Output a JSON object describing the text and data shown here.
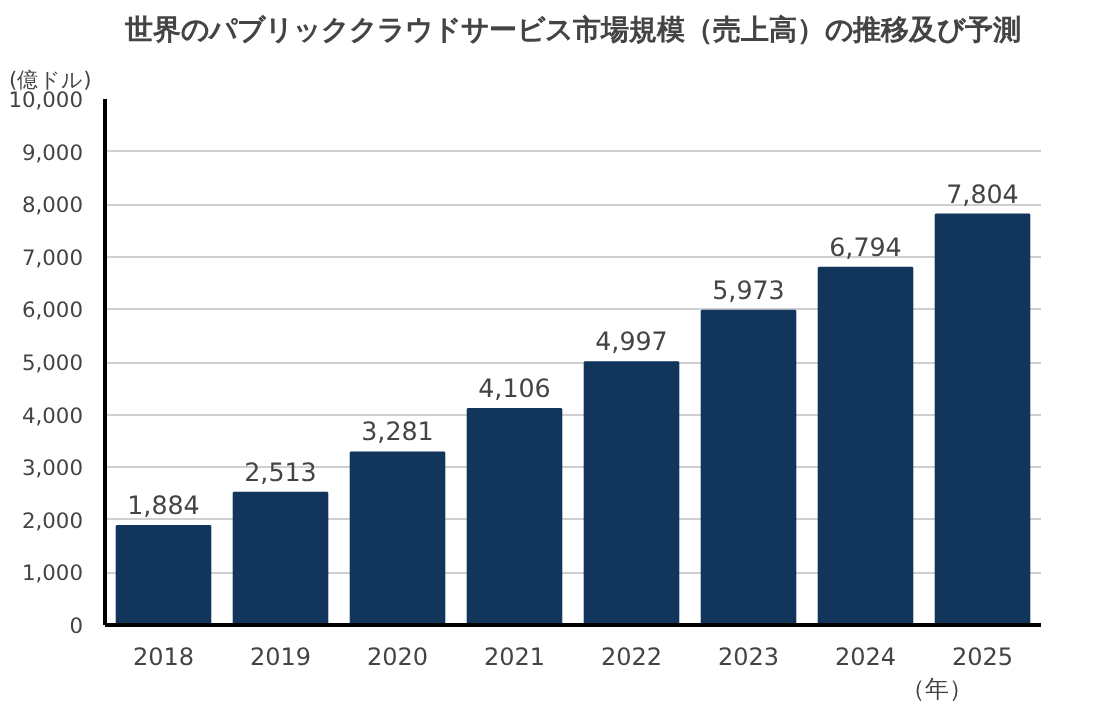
{
  "chart_data": {
    "type": "bar",
    "title": "世界のパブリッククラウドサービス市場規模（売上高）の推移及び予測",
    "ylabel": "(億ドル)",
    "xlabel": "（年）",
    "categories": [
      "2018",
      "2019",
      "2020",
      "2021",
      "2022",
      "2023",
      "2024",
      "2025"
    ],
    "values": [
      1884,
      2513,
      3281,
      4106,
      4997,
      5973,
      6794,
      7804
    ],
    "color": "#12355b",
    "ylim": [
      0,
      10000
    ],
    "yticks": [
      {
        "value": 0,
        "label": "0"
      },
      {
        "value": 1000,
        "label": "1,000"
      },
      {
        "value": 2000,
        "label": "2,000"
      },
      {
        "value": 3000,
        "label": "3,000"
      },
      {
        "value": 4000,
        "label": "4,000"
      },
      {
        "value": 5000,
        "label": "5,000"
      },
      {
        "value": 6000,
        "label": "6,000"
      },
      {
        "value": 7000,
        "label": "7,000"
      },
      {
        "value": 8000,
        "label": "8,000"
      },
      {
        "value": 9000,
        "label": "9,000"
      },
      {
        "value": 10000,
        "label": "10,000"
      }
    ],
    "grid": "y",
    "data_labels": true,
    "value_labels": [
      "1,884",
      "2,513",
      "3,281",
      "4,106",
      "4,997",
      "5,973",
      "6,794",
      "7,804"
    ]
  }
}
